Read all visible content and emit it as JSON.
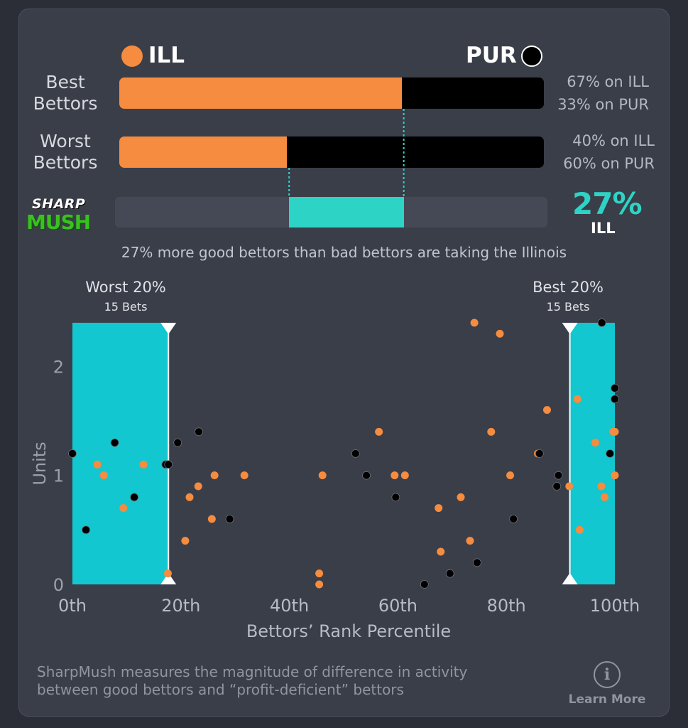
{
  "teams": {
    "left": {
      "name": "ILL",
      "color": "#f58c3f"
    },
    "right": {
      "name": "PUR",
      "color": "#000000"
    }
  },
  "best": {
    "label_line1": "Best",
    "label_line2": "Bettors",
    "pct_left": 67,
    "pct_left_text": "67% on ILL",
    "pct_right_text": "33% on PUR"
  },
  "worst": {
    "label_line1": "Worst",
    "label_line2": "Bettors",
    "pct_left": 40,
    "pct_left_text": "40% on ILL",
    "pct_right_text": "60% on PUR"
  },
  "sharpmush": {
    "logo_text_1": "SHARP",
    "logo_text_2": "MUSH",
    "value_text": "27%",
    "team": "ILL",
    "diff_start": 40,
    "diff_end": 67,
    "color": "#2dd4c5"
  },
  "summary": "27% more good bettors than bad bettors are taking the Illinois",
  "zones": {
    "worst": {
      "title": "Worst 20%",
      "sub": "15 Bets"
    },
    "best": {
      "title": "Best 20%",
      "sub": "15 Bets"
    },
    "color": "#12c7cf"
  },
  "chart_data": {
    "type": "scatter",
    "xlabel": "Bettors’ Rank Percentile",
    "ylabel": "Units",
    "xlim": [
      0,
      100
    ],
    "ylim": [
      0,
      2.4
    ],
    "x_ticks": [
      0,
      20,
      40,
      60,
      80,
      100
    ],
    "x_tick_labels": [
      "0th",
      "20th",
      "40th",
      "60th",
      "80th",
      "100th"
    ],
    "y_ticks": [
      0,
      1,
      2
    ],
    "y_tick_labels": [
      "0",
      "1",
      "2"
    ],
    "worst_zone": [
      0,
      17.7
    ],
    "best_zone": [
      91.7,
      100
    ],
    "series": [
      {
        "name": "ILL",
        "color": "#f58c3f",
        "points": [
          [
            4.6,
            1.1
          ],
          [
            5.8,
            1.0
          ],
          [
            9.4,
            0.7
          ],
          [
            13.1,
            1.1
          ],
          [
            17.6,
            0.1
          ],
          [
            20.8,
            0.4
          ],
          [
            21.6,
            0.8
          ],
          [
            23.2,
            0.9
          ],
          [
            25.7,
            0.6
          ],
          [
            26.2,
            1.0
          ],
          [
            31.7,
            1.0
          ],
          [
            45.5,
            0.1
          ],
          [
            45.5,
            0.0
          ],
          [
            46.1,
            1.0
          ],
          [
            56.5,
            1.4
          ],
          [
            59.4,
            1.0
          ],
          [
            61.3,
            1.0
          ],
          [
            67.5,
            0.7
          ],
          [
            67.9,
            0.3
          ],
          [
            71.6,
            0.8
          ],
          [
            73.3,
            0.4
          ],
          [
            74.1,
            2.4
          ],
          [
            77.2,
            1.4
          ],
          [
            78.8,
            2.3
          ],
          [
            80.7,
            1.0
          ],
          [
            85.8,
            1.2
          ],
          [
            87.5,
            1.6
          ],
          [
            91.6,
            0.9
          ],
          [
            93.1,
            1.7
          ],
          [
            93.5,
            0.5
          ],
          [
            96.4,
            1.3
          ],
          [
            97.5,
            0.9
          ],
          [
            98.1,
            0.8
          ],
          [
            99.7,
            1.4
          ],
          [
            100.0,
            1.0
          ],
          [
            100.0,
            1.4
          ]
        ]
      },
      {
        "name": "PUR",
        "color": "#000000",
        "points": [
          [
            0.0,
            1.2
          ],
          [
            2.5,
            0.5
          ],
          [
            7.8,
            1.3
          ],
          [
            11.4,
            0.8
          ],
          [
            17.2,
            1.1
          ],
          [
            17.7,
            1.1
          ],
          [
            19.4,
            1.3
          ],
          [
            23.3,
            1.4
          ],
          [
            29.0,
            0.6
          ],
          [
            52.2,
            1.2
          ],
          [
            54.2,
            1.0
          ],
          [
            59.6,
            0.8
          ],
          [
            64.9,
            0.0
          ],
          [
            69.6,
            0.1
          ],
          [
            74.6,
            0.2
          ],
          [
            81.3,
            0.6
          ],
          [
            86.1,
            1.2
          ],
          [
            89.3,
            0.9
          ],
          [
            89.6,
            1.0
          ],
          [
            97.6,
            2.4
          ],
          [
            99.1,
            1.2
          ],
          [
            100.0,
            1.8
          ],
          [
            100.0,
            1.7
          ]
        ]
      }
    ]
  },
  "footer": {
    "line1": "SharpMush measures the magnitude of difference in activity",
    "line2": "between good bettors and “profit-deficient” bettors",
    "learn_icon": "info-icon",
    "learn_label": "Learn More"
  }
}
